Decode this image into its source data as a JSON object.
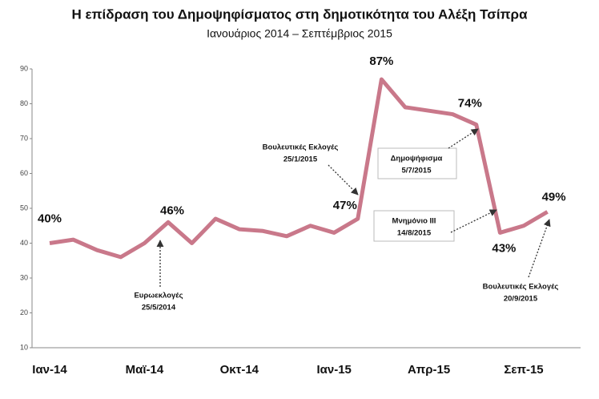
{
  "chart_data": {
    "type": "line",
    "title": "Η επίδραση του Δημοψηφίσματος στη δημοτικότητα του Αλέξη Τσίπρα",
    "subtitle": "Ιανουάριος 2014 – Σεπτέμβριος 2015",
    "categories": [
      "Ιαν-14",
      null,
      null,
      null,
      "Μαϊ-14",
      null,
      null,
      null,
      "Οκτ-14",
      null,
      null,
      null,
      "Ιαν-15",
      null,
      null,
      null,
      "Απρ-15",
      null,
      null,
      null,
      "Σεπ-15",
      null
    ],
    "values": [
      40,
      41,
      38,
      36,
      40,
      46,
      40,
      47,
      44,
      43.5,
      42,
      45,
      43,
      47,
      87,
      79,
      78,
      77,
      74,
      43,
      45,
      49
    ],
    "value_labels": [
      "40%",
      null,
      null,
      null,
      null,
      "46%",
      null,
      null,
      null,
      null,
      null,
      null,
      null,
      "47%",
      "87%",
      null,
      null,
      null,
      "74%",
      "43%",
      null,
      "49%"
    ],
    "color": "#c9788a",
    "ylim": [
      10,
      90
    ],
    "yticks": [
      10,
      20,
      30,
      40,
      50,
      60,
      70,
      80,
      90
    ],
    "annotations": [
      [
        "Ευρωεκλογές",
        "25/5/2014"
      ],
      [
        "Βουλευτικές Εκλογές",
        "25/1/2015"
      ],
      [
        "Δημοψήφισμα",
        "5/7/2015"
      ],
      [
        "Μνημόνιο ΙΙΙ",
        "14/8/2015"
      ],
      [
        "Βουλευτικές Εκλογές",
        "20/9/2015"
      ]
    ]
  }
}
